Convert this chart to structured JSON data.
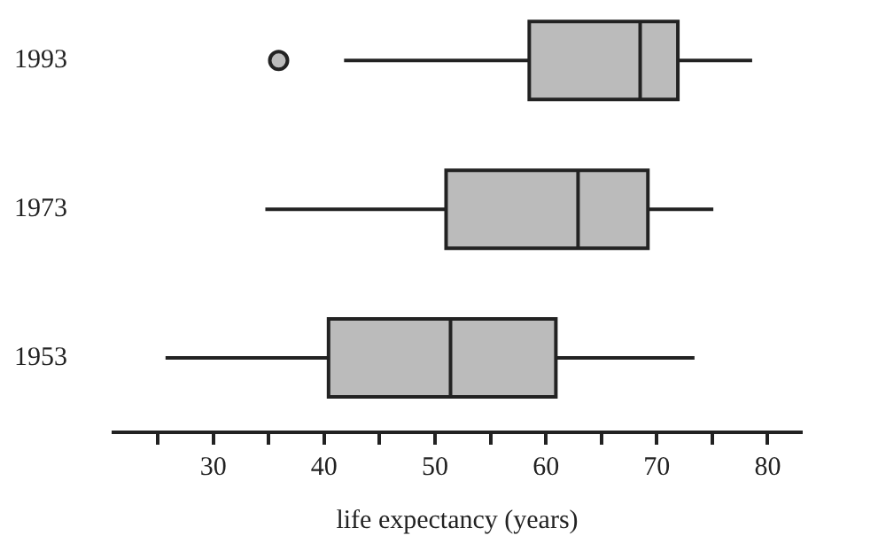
{
  "chart_data": {
    "type": "box",
    "orientation": "horizontal",
    "categories": [
      "1993",
      "1973",
      "1953"
    ],
    "boxes": [
      {
        "low": 41.8,
        "q1": 58.5,
        "median": 68.5,
        "q3": 71.9,
        "high": 78.6,
        "outliers": [
          35.9
        ]
      },
      {
        "low": 34.7,
        "q1": 51.0,
        "median": 62.9,
        "q3": 69.2,
        "high": 75.1
      },
      {
        "low": 25.7,
        "q1": 40.4,
        "median": 51.4,
        "q3": 60.9,
        "high": 73.4
      }
    ],
    "color": "#bbbbbb",
    "xlabel": "life expectancy (years)",
    "xlim": [
      21,
      83
    ],
    "xticks": [
      {
        "value": 25,
        "label": null
      },
      30,
      {
        "value": 35,
        "label": null
      },
      40,
      {
        "value": 45,
        "label": null
      },
      50,
      {
        "value": 55,
        "label": null
      },
      60,
      {
        "value": 65,
        "label": null
      },
      70,
      {
        "value": 75,
        "label": null
      },
      80
    ],
    "grid": false,
    "legend": false
  }
}
